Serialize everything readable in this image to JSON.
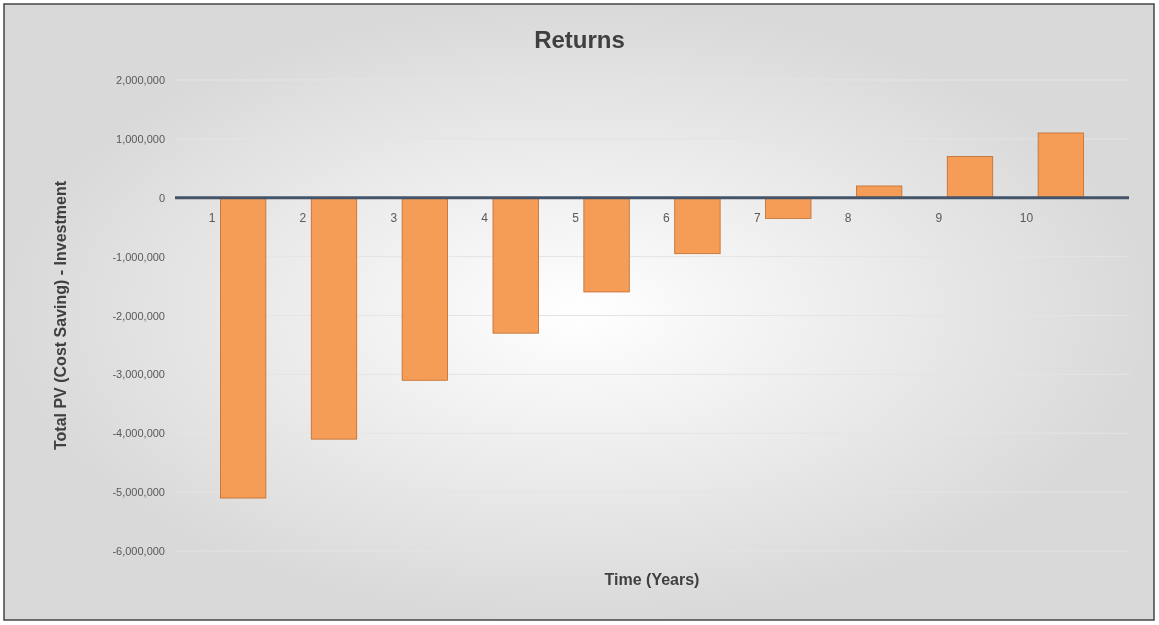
{
  "chart_data": {
    "type": "bar",
    "title": "Returns",
    "xlabel": "Time (Years)",
    "ylabel": "Total PV (Cost Saving) - Investment",
    "categories": [
      "1",
      "2",
      "3",
      "4",
      "5",
      "6",
      "7",
      "8",
      "9",
      "10"
    ],
    "values": [
      -5100000,
      -4100000,
      -3100000,
      -2300000,
      -1600000,
      -950000,
      -350000,
      200000,
      700000,
      1100000
    ],
    "color": "#f59d56",
    "ylim": [
      -6000000,
      2000000
    ],
    "yticks": [
      {
        "value": -6000000,
        "label": "-6,000,000"
      },
      {
        "value": -5000000,
        "label": "-5,000,000"
      },
      {
        "value": -4000000,
        "label": "-4,000,000"
      },
      {
        "value": -3000000,
        "label": "-3,000,000"
      },
      {
        "value": -2000000,
        "label": "-2,000,000"
      },
      {
        "value": -1000000,
        "label": "-1,000,000"
      },
      {
        "value": 0,
        "label": "0"
      },
      {
        "value": 1000000,
        "label": "1,000,000"
      },
      {
        "value": 2000000,
        "label": "2,000,000"
      }
    ],
    "grid": "y"
  }
}
